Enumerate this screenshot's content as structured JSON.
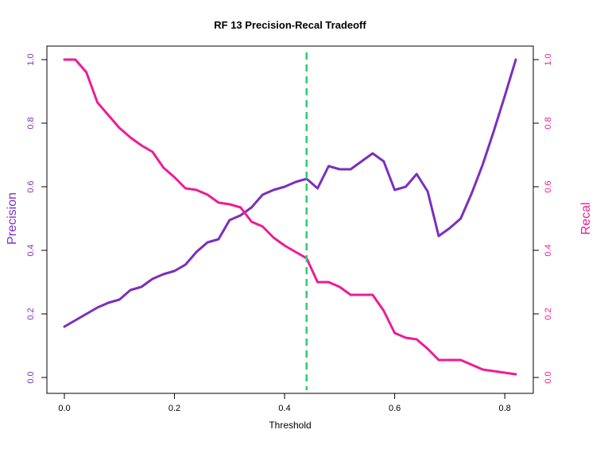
{
  "chart_data": {
    "type": "line",
    "title": "RF 13 Precision-Recal Tradeoff",
    "xlabel": "Threshold",
    "ylabel_left": "Precision",
    "ylabel_right": "Recal",
    "xlim": [
      0,
      0.82
    ],
    "ylim": [
      0,
      1
    ],
    "x_ticks": [
      "0.0",
      "0.2",
      "0.4",
      "0.6",
      "0.8"
    ],
    "x_tick_values": [
      0,
      0.2,
      0.4,
      0.6,
      0.8
    ],
    "y_ticks": [
      "0.0",
      "0.2",
      "0.4",
      "0.6",
      "0.8",
      "1.0"
    ],
    "y_tick_values": [
      0,
      0.2,
      0.4,
      0.6,
      0.8,
      1.0
    ],
    "grid": false,
    "threshold_line": {
      "x": 0.44,
      "color": "#2ecc71",
      "style": "dashed"
    },
    "series": [
      {
        "axis": "left",
        "color": "#7b2fbe",
        "x": [
          0,
          0.02,
          0.04,
          0.06,
          0.08,
          0.1,
          0.12,
          0.14,
          0.16,
          0.18,
          0.2,
          0.22,
          0.24,
          0.26,
          0.28,
          0.3,
          0.32,
          0.34,
          0.36,
          0.38,
          0.4,
          0.42,
          0.44,
          0.46,
          0.48,
          0.5,
          0.52,
          0.54,
          0.56,
          0.58,
          0.6,
          0.62,
          0.64,
          0.66,
          0.68,
          0.7,
          0.72,
          0.74,
          0.76,
          0.78,
          0.8,
          0.82
        ],
        "y": [
          0.16,
          0.18,
          0.2,
          0.22,
          0.235,
          0.245,
          0.275,
          0.285,
          0.31,
          0.325,
          0.335,
          0.355,
          0.395,
          0.425,
          0.435,
          0.495,
          0.51,
          0.535,
          0.575,
          0.59,
          0.6,
          0.615,
          0.625,
          0.595,
          0.665,
          0.655,
          0.655,
          0.68,
          0.705,
          0.68,
          0.59,
          0.6,
          0.64,
          0.585,
          0.445,
          0.47,
          0.5,
          0.58,
          0.67,
          0.775,
          0.885,
          1.0
        ]
      },
      {
        "axis": "right",
        "color": "#ee1c96",
        "x": [
          0,
          0.02,
          0.04,
          0.06,
          0.08,
          0.1,
          0.12,
          0.14,
          0.16,
          0.18,
          0.2,
          0.22,
          0.24,
          0.26,
          0.28,
          0.3,
          0.32,
          0.34,
          0.36,
          0.38,
          0.4,
          0.42,
          0.44,
          0.46,
          0.48,
          0.5,
          0.52,
          0.54,
          0.56,
          0.58,
          0.6,
          0.62,
          0.64,
          0.66,
          0.68,
          0.7,
          0.72,
          0.74,
          0.76,
          0.78,
          0.8,
          0.82
        ],
        "y": [
          1.0,
          1.0,
          0.96,
          0.865,
          0.825,
          0.785,
          0.755,
          0.73,
          0.71,
          0.66,
          0.63,
          0.595,
          0.59,
          0.575,
          0.55,
          0.545,
          0.535,
          0.49,
          0.475,
          0.44,
          0.415,
          0.395,
          0.375,
          0.3,
          0.3,
          0.285,
          0.26,
          0.26,
          0.26,
          0.21,
          0.14,
          0.125,
          0.12,
          0.09,
          0.055,
          0.055,
          0.055,
          0.04,
          0.025,
          0.02,
          0.015,
          0.01
        ]
      }
    ],
    "colors": {
      "precision_axis": "#7b2fbe",
      "recall_axis": "#ee1c96",
      "frame": "#000000"
    }
  }
}
